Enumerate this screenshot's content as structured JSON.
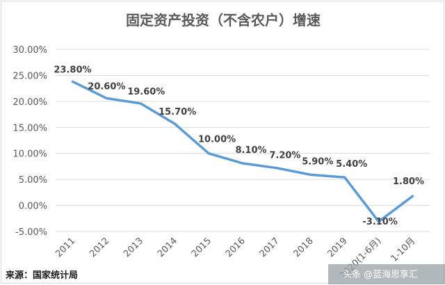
{
  "chart_data": {
    "type": "line",
    "title": "固定资产投资（不含农户）增速",
    "categories": [
      "2011",
      "2012",
      "2013",
      "2014",
      "2015",
      "2016",
      "2017",
      "2018",
      "2019",
      "2020(1-6月)",
      "1-10月"
    ],
    "series": [
      {
        "values": [
          23.8,
          20.6,
          19.6,
          15.7,
          10.0,
          8.1,
          7.2,
          5.9,
          5.4,
          -3.1,
          1.8
        ]
      }
    ],
    "data_labels": [
      "23.80%",
      "20.60%",
      "19.60%",
      "15.70%",
      "10.00%",
      "8.10%",
      "7.20%",
      "5.90%",
      "5.40%",
      "-3.10%",
      "1.80%"
    ],
    "yticks": [
      "30.00%",
      "25.00%",
      "20.00%",
      "15.00%",
      "10.00%",
      "5.00%",
      "0.00%",
      "-5.00%"
    ],
    "ylim": [
      -5,
      30
    ],
    "grid": true,
    "xlabel": "",
    "ylabel": "",
    "colors": {
      "line": "#5b9bd5",
      "grid": "#d9d9d9"
    }
  },
  "footer": {
    "source": "来源：国家统计局",
    "watermark": "头条 @蓝海思享汇"
  }
}
